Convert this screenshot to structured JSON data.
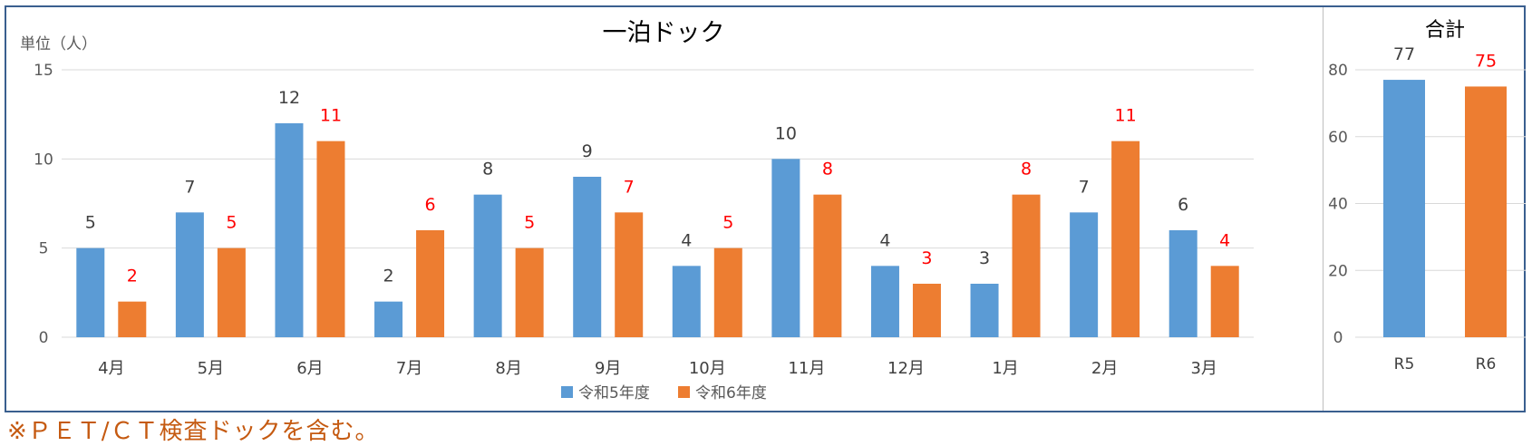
{
  "colors": {
    "r5": "#5b9bd5",
    "r6": "#ed7d31",
    "grid": "#d9d9d9",
    "frame": "#3a5f8f",
    "label_r5": "#404040",
    "label_r6": "#ff0000",
    "footnote": "#c55a11"
  },
  "chart_data": [
    {
      "type": "bar",
      "title": "一泊ドック",
      "ylabel": "単位（人）",
      "ylim": [
        0,
        15
      ],
      "yticks": [
        0,
        5,
        10,
        15
      ],
      "categories": [
        "4月",
        "5月",
        "6月",
        "7月",
        "8月",
        "9月",
        "10月",
        "11月",
        "12月",
        "1月",
        "2月",
        "3月"
      ],
      "series": [
        {
          "name": "令和5年度",
          "values": [
            5,
            7,
            12,
            2,
            8,
            9,
            4,
            10,
            4,
            3,
            7,
            6
          ]
        },
        {
          "name": "令和6年度",
          "values": [
            2,
            5,
            11,
            6,
            5,
            7,
            5,
            8,
            3,
            8,
            11,
            4
          ]
        }
      ],
      "legend": "bottom",
      "grid": true
    },
    {
      "type": "bar",
      "title": "合計",
      "ylim": [
        0,
        80
      ],
      "yticks": [
        0,
        20,
        40,
        60,
        80
      ],
      "categories": [
        "R5",
        "R6"
      ],
      "values": [
        77,
        75
      ],
      "grid": true
    }
  ],
  "footnote": "※ＰＥＴ/ＣＴ検査ドックを含む。"
}
